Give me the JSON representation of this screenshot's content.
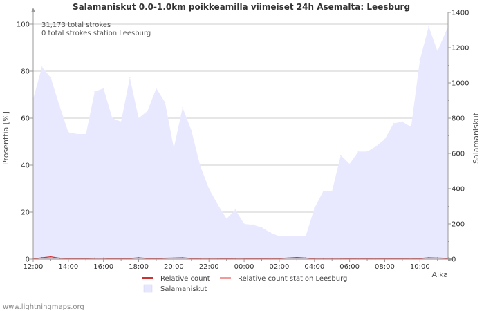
{
  "chart_data": {
    "type": "area",
    "title": "Salamaniskut 0.0-1.0km poikkeamilla viimeiset 24h Asemalta: Leesburg",
    "xlabel": "Aika",
    "ylabel_left": "Prosenttia   [%]",
    "ylabel_right": "Salamaniskut",
    "ylim_left": [
      0,
      105
    ],
    "ylim_right": [
      0,
      1400
    ],
    "left_ticks": [
      "0",
      "20",
      "40",
      "60",
      "80",
      "100"
    ],
    "right_ticks": [
      "0",
      "200",
      "400",
      "600",
      "800",
      "1000",
      "1200",
      "1400"
    ],
    "x_tick_labels": [
      "12:00",
      "14:00",
      "16:00",
      "18:00",
      "20:00",
      "22:00",
      "00:00",
      "02:00",
      "04:00",
      "06:00",
      "08:00",
      "10:00"
    ],
    "x_start_hour": 12,
    "x_end_hour": 35.6,
    "grid": true,
    "annotations": [
      "31,173 total strokes",
      "0 total strokes station Leesburg"
    ],
    "legend": [
      {
        "label": "Relative count",
        "color": "#cc3333",
        "type": "line"
      },
      {
        "label": "Relative count station Leesburg",
        "color": "#f09a9a",
        "type": "line"
      },
      {
        "label": "Salamaniskut",
        "color": "#e6e6ff",
        "type": "area"
      }
    ],
    "series": [
      {
        "name": "Salamaniskut",
        "axis": "right",
        "color": "#e8e8ff",
        "x_hours": [
          12.0,
          12.5,
          13.0,
          13.5,
          14.0,
          14.5,
          15.0,
          15.5,
          16.0,
          16.5,
          17.0,
          17.5,
          18.0,
          18.5,
          19.0,
          19.5,
          20.0,
          20.5,
          21.0,
          21.5,
          22.0,
          22.5,
          23.0,
          23.5,
          24.0,
          24.5,
          25.0,
          25.5,
          26.0,
          26.5,
          27.0,
          27.5,
          28.0,
          28.5,
          29.0,
          29.5,
          30.0,
          30.5,
          31.0,
          31.5,
          32.0,
          32.5,
          33.0,
          33.5,
          34.0,
          34.5,
          35.0,
          35.6
        ],
        "values": [
          910,
          1090,
          1030,
          870,
          720,
          710,
          710,
          950,
          970,
          800,
          780,
          1030,
          800,
          840,
          970,
          890,
          630,
          860,
          730,
          530,
          400,
          310,
          230,
          280,
          200,
          195,
          180,
          150,
          130,
          130,
          130,
          130,
          290,
          385,
          385,
          590,
          540,
          610,
          610,
          640,
          680,
          770,
          780,
          750,
          1130,
          1320,
          1180,
          1320
        ]
      },
      {
        "name": "Relative count",
        "axis": "left",
        "color": "#cc3333",
        "x_hours": [
          12.0,
          12.5,
          13.0,
          13.5,
          14.0,
          14.5,
          15.0,
          15.5,
          16.0,
          16.5,
          17.0,
          17.5,
          18.0,
          18.5,
          19.0,
          19.5,
          20.0,
          20.5,
          21.0,
          21.5,
          22.0,
          22.5,
          23.0,
          23.5,
          24.0,
          24.5,
          25.0,
          25.5,
          26.0,
          26.5,
          27.0,
          27.5,
          28.0,
          28.5,
          29.0,
          29.5,
          30.0,
          30.5,
          31.0,
          31.5,
          32.0,
          32.5,
          33.0,
          33.5,
          34.0,
          34.5,
          35.0,
          35.6
        ],
        "values": [
          0.1,
          0.6,
          1.0,
          0.4,
          0.3,
          0.2,
          0.3,
          0.4,
          0.4,
          0.2,
          0.2,
          0.3,
          0.6,
          0.3,
          0.2,
          0.4,
          0.5,
          0.6,
          0.3,
          0.1,
          0.1,
          0.1,
          0.2,
          0.1,
          0.1,
          0.3,
          0.2,
          0.1,
          0.3,
          0.5,
          0.7,
          0.5,
          0.1,
          0.1,
          0.1,
          0.1,
          0.2,
          0.1,
          0.2,
          0.1,
          0.3,
          0.2,
          0.2,
          0.1,
          0.3,
          0.6,
          0.5,
          0.3
        ]
      },
      {
        "name": "Relative count station Leesburg",
        "axis": "left",
        "color": "#f09a9a",
        "x_hours": [
          12.0,
          35.6
        ],
        "values": [
          0,
          0
        ]
      }
    ]
  },
  "footer": {
    "credit": "www.lightningmaps.org"
  }
}
